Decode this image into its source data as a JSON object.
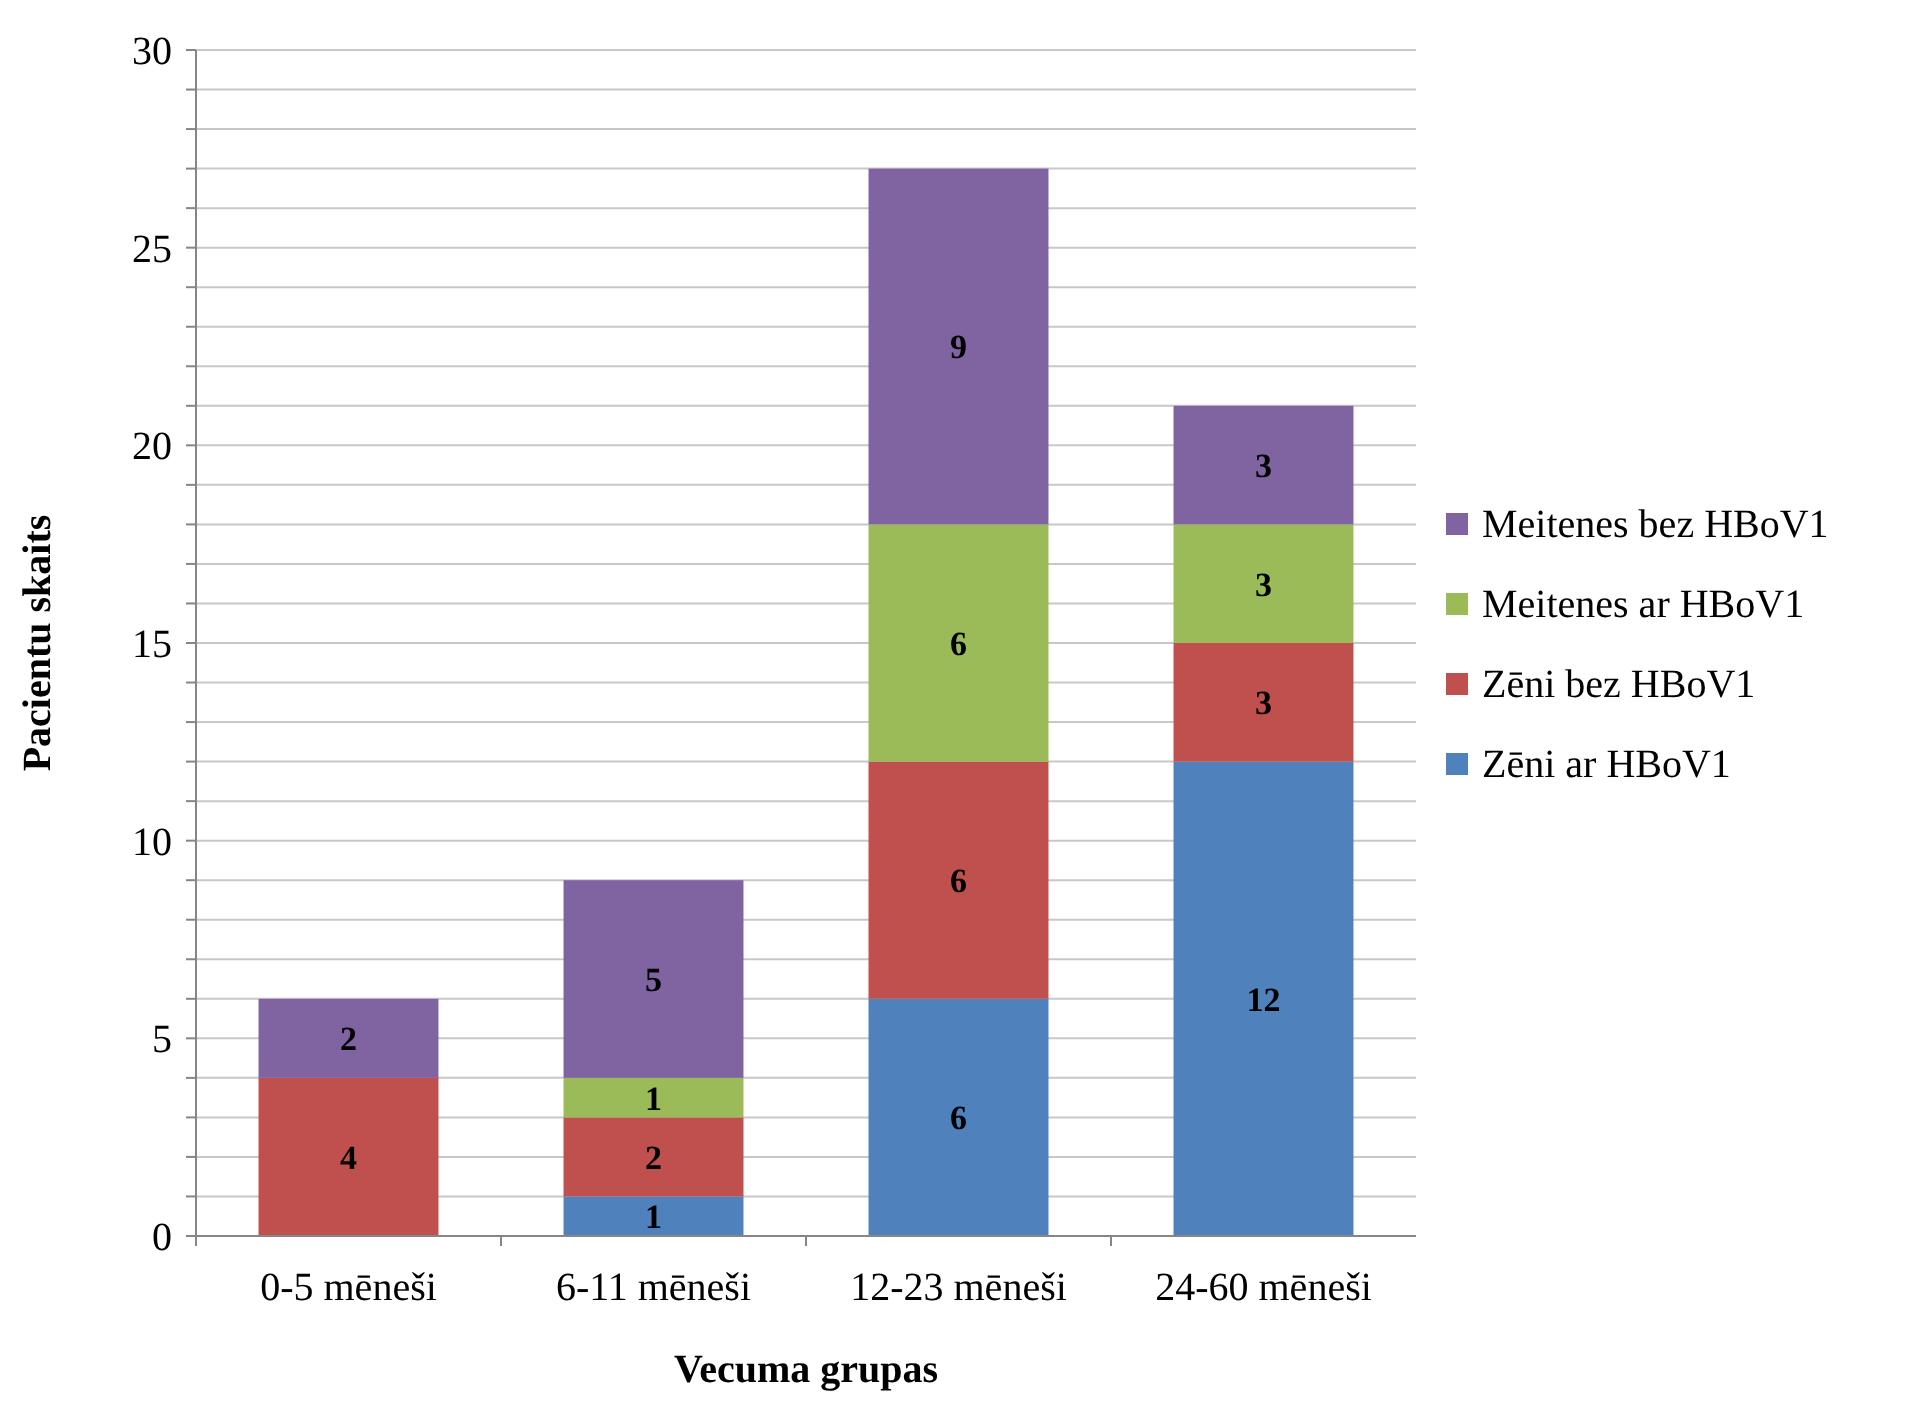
{
  "chart_data": {
    "type": "bar",
    "stacked": true,
    "xlabel": "Vecuma grupas",
    "ylabel": "Pacientu skaits",
    "categories": [
      "0-5 mēneši",
      "6-11 mēneši",
      "12-23 mēneši",
      "24-60 mēneši"
    ],
    "series": [
      {
        "name": "Zēni ar HBoV1",
        "color": "#4f81bd",
        "values": [
          0,
          1,
          6,
          12
        ],
        "value_labels": [
          null,
          "1",
          "6",
          "12"
        ]
      },
      {
        "name": "Zēni bez HBoV1",
        "color": "#c0504d",
        "values": [
          4,
          2,
          6,
          3
        ],
        "value_labels": [
          "4",
          "2",
          "6",
          "3"
        ]
      },
      {
        "name": "Meitenes ar HBoV1",
        "color": "#9bbb59",
        "values": [
          0,
          1,
          6,
          3
        ],
        "value_labels": [
          null,
          "1",
          "6",
          "3"
        ]
      },
      {
        "name": "Meitenes bez HBoV1",
        "color": "#8064a2",
        "values": [
          2,
          5,
          9,
          3
        ],
        "value_labels": [
          "2",
          "5",
          "9",
          "3"
        ]
      }
    ],
    "ylim": [
      0,
      30
    ],
    "yticks": [
      0,
      {
        "value": 1,
        "label": null
      },
      {
        "value": 2,
        "label": null
      },
      {
        "value": 3,
        "label": null
      },
      {
        "value": 4,
        "label": null
      },
      5,
      {
        "value": 6,
        "label": null
      },
      {
        "value": 7,
        "label": null
      },
      {
        "value": 8,
        "label": null
      },
      {
        "value": 9,
        "label": null
      },
      10,
      {
        "value": 11,
        "label": null
      },
      {
        "value": 12,
        "label": null
      },
      {
        "value": 13,
        "label": null
      },
      {
        "value": 14,
        "label": null
      },
      15,
      {
        "value": 16,
        "label": null
      },
      {
        "value": 17,
        "label": null
      },
      {
        "value": 18,
        "label": null
      },
      {
        "value": 19,
        "label": null
      },
      20,
      {
        "value": 21,
        "label": null
      },
      {
        "value": 22,
        "label": null
      },
      {
        "value": 23,
        "label": null
      },
      {
        "value": 24,
        "label": null
      },
      25,
      {
        "value": 26,
        "label": null
      },
      {
        "value": 27,
        "label": null
      },
      {
        "value": 28,
        "label": null
      },
      {
        "value": 29,
        "label": null
      },
      30
    ],
    "grid": true,
    "legend": "right"
  }
}
